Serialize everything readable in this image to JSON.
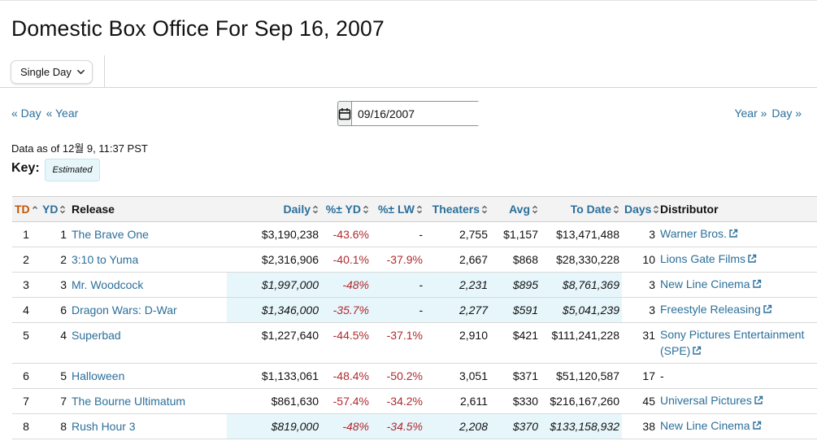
{
  "page": {
    "title": "Domestic Box Office For Sep 16, 2007"
  },
  "toolbar": {
    "view_select": "Single Day"
  },
  "nav": {
    "prev_day": "« Day",
    "prev_year": "« Year",
    "next_year": "Year »",
    "next_day": "Day »",
    "date_value": "09/16/2007"
  },
  "meta": {
    "data_as_of": "Data as of 12월 9, 11:37 PST",
    "key_label": "Key:",
    "key_estimated": "Estimated"
  },
  "colors": {
    "link": "#2b6f9a",
    "negative": "#b0292e",
    "sorted_header": "#c45500",
    "estimated_bg": "#e6f6fb"
  },
  "table": {
    "headers": {
      "td": "TD",
      "yd": "YD",
      "release": "Release",
      "daily": "Daily",
      "pct_yd": "%± YD",
      "pct_lw": "%± LW",
      "theaters": "Theaters",
      "avg": "Avg",
      "to_date": "To Date",
      "days": "Days",
      "distributor": "Distributor"
    },
    "rows": [
      {
        "td": "1",
        "yd": "1",
        "release": "The Brave One",
        "daily": "$3,190,238",
        "pct_yd": "-43.6%",
        "pct_lw": "-",
        "theaters": "2,755",
        "avg": "$1,157",
        "to_date": "$13,471,488",
        "days": "3",
        "distributor": "Warner Bros.",
        "estimated": false
      },
      {
        "td": "2",
        "yd": "2",
        "release": "3:10 to Yuma",
        "daily": "$2,316,906",
        "pct_yd": "-40.1%",
        "pct_lw": "-37.9%",
        "theaters": "2,667",
        "avg": "$868",
        "to_date": "$28,330,228",
        "days": "10",
        "distributor": "Lions Gate Films",
        "estimated": false
      },
      {
        "td": "3",
        "yd": "3",
        "release": "Mr. Woodcock",
        "daily": "$1,997,000",
        "pct_yd": "-48%",
        "pct_lw": "-",
        "theaters": "2,231",
        "avg": "$895",
        "to_date": "$8,761,369",
        "days": "3",
        "distributor": "New Line Cinema",
        "estimated": true
      },
      {
        "td": "4",
        "yd": "6",
        "release": "Dragon Wars: D-War",
        "daily": "$1,346,000",
        "pct_yd": "-35.7%",
        "pct_lw": "-",
        "theaters": "2,277",
        "avg": "$591",
        "to_date": "$5,041,239",
        "days": "3",
        "distributor": "Freestyle Releasing",
        "estimated": true
      },
      {
        "td": "5",
        "yd": "4",
        "release": "Superbad",
        "daily": "$1,227,640",
        "pct_yd": "-44.5%",
        "pct_lw": "-37.1%",
        "theaters": "2,910",
        "avg": "$421",
        "to_date": "$111,241,228",
        "days": "31",
        "distributor": "Sony Pictures Entertainment (SPE)",
        "estimated": false
      },
      {
        "td": "6",
        "yd": "5",
        "release": "Halloween",
        "daily": "$1,133,061",
        "pct_yd": "-48.4%",
        "pct_lw": "-50.2%",
        "theaters": "3,051",
        "avg": "$371",
        "to_date": "$51,120,587",
        "days": "17",
        "distributor": "-",
        "estimated": false
      },
      {
        "td": "7",
        "yd": "7",
        "release": "The Bourne Ultimatum",
        "daily": "$861,630",
        "pct_yd": "-57.4%",
        "pct_lw": "-34.2%",
        "theaters": "2,611",
        "avg": "$330",
        "to_date": "$216,167,260",
        "days": "45",
        "distributor": "Universal Pictures",
        "estimated": false
      },
      {
        "td": "8",
        "yd": "8",
        "release": "Rush Hour 3",
        "daily": "$819,000",
        "pct_yd": "-48%",
        "pct_lw": "-34.5%",
        "theaters": "2,208",
        "avg": "$370",
        "to_date": "$133,158,932",
        "days": "38",
        "distributor": "New Line Cinema",
        "estimated": true
      }
    ]
  }
}
